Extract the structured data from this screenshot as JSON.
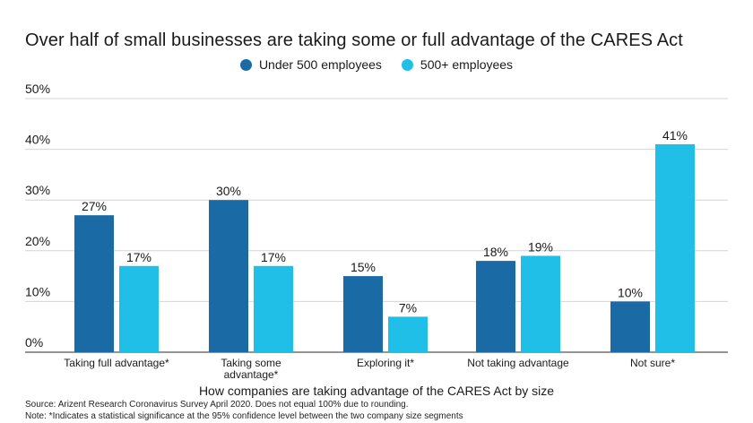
{
  "chart_data": {
    "type": "bar",
    "title": "Over half of small businesses are taking some or full advantage of the CARES Act",
    "xlabel": "How companies are taking advantage of the CARES Act by size",
    "ylabel": "",
    "categories": [
      [
        "Taking full advantage*"
      ],
      [
        "Taking some",
        "advantage*"
      ],
      [
        "Exploring it*"
      ],
      [
        "Not taking advantage"
      ],
      [
        "Not sure*"
      ]
    ],
    "series": [
      {
        "name": "Under 500 employees",
        "color": "#1a6aa6",
        "values": [
          27,
          30,
          15,
          18,
          10
        ]
      },
      {
        "name": "500+ employees",
        "color": "#1fbfe8",
        "values": [
          17,
          17,
          7,
          19,
          41
        ]
      }
    ],
    "ylim": [
      0,
      50
    ],
    "yticks": [
      0,
      10,
      20,
      30,
      40,
      50
    ],
    "value_suffix": "%",
    "grid": true,
    "legend_position": "top-center"
  },
  "footnotes": {
    "source": "Source: Arizent Research Coronavirus Survey April 2020. Does not equal 100% due to rounding.",
    "note": "Note: *Indicates a statistical significance at the 95% confidence level between the two company size segments"
  }
}
